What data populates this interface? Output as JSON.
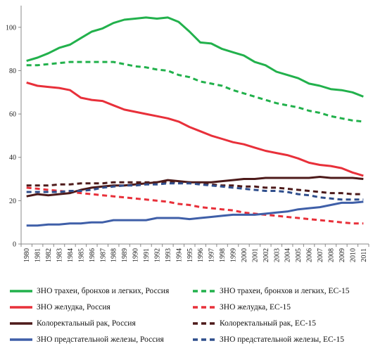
{
  "chart_data": {
    "type": "line",
    "x": [
      "1980",
      "1981",
      "1982",
      "1983",
      "1984",
      "1985",
      "1986",
      "1987",
      "1988",
      "1989",
      "1990",
      "1991",
      "1992",
      "1993",
      "1994",
      "1995",
      "1996",
      "1997",
      "1998",
      "1999",
      "2000",
      "2001",
      "2002",
      "2003",
      "2004",
      "2005",
      "2006",
      "2007",
      "2008",
      "2009",
      "2010",
      "2011"
    ],
    "ylim": [
      0,
      110
    ],
    "yticks": [
      "0",
      "20",
      "40",
      "60",
      "80",
      "100"
    ],
    "grid": false,
    "legend_position": "bottom",
    "series": [
      {
        "name": "ЗНО трахеи, бронхов и легких, Россия",
        "color": "#22b14c",
        "dash": "solid",
        "values": [
          84.5,
          86,
          88,
          90.5,
          92,
          95,
          98,
          99.5,
          102,
          103.5,
          104,
          104.5,
          104,
          104.5,
          102.5,
          98,
          93,
          92.5,
          90,
          88.5,
          87,
          84,
          82.5,
          79.5,
          78,
          76.5,
          74,
          73,
          71.5,
          71,
          70,
          68
        ]
      },
      {
        "name": "ЗНО трахеи, бронхов и легких, ЕС-15",
        "color": "#22b14c",
        "dash": "dashed",
        "values": [
          82.5,
          82.5,
          83,
          83.5,
          84,
          84,
          84,
          84,
          84,
          83,
          82,
          81.5,
          80.5,
          80,
          78,
          77,
          75,
          74,
          73,
          71,
          69.5,
          68,
          66.5,
          65,
          64,
          63,
          61.5,
          60.5,
          59,
          58,
          57,
          56.5
        ]
      },
      {
        "name": "ЗНО желудка, Россия",
        "color": "#e8303a",
        "dash": "solid",
        "values": [
          74.5,
          73,
          72.5,
          72,
          71,
          67.5,
          66.5,
          66,
          64,
          62,
          61,
          60,
          59,
          58,
          56.5,
          54,
          52,
          50,
          48.5,
          47,
          46,
          44.5,
          43,
          42,
          41,
          39.5,
          37.5,
          36.5,
          36,
          35,
          33,
          31.5
        ]
      },
      {
        "name": "ЗНО желудка, ЕС-15",
        "color": "#e8303a",
        "dash": "dashed",
        "values": [
          26,
          25.5,
          25,
          24.5,
          24,
          23.5,
          23,
          22.5,
          22,
          21.5,
          21,
          20.5,
          20,
          19.5,
          18.5,
          18,
          17,
          16.5,
          16,
          15.5,
          14.5,
          14,
          13.5,
          13,
          12.5,
          12,
          11.5,
          11,
          10.5,
          10,
          9.5,
          9.5
        ]
      },
      {
        "name": "Колоректальный рак, Россия",
        "color": "#4d1a1a",
        "dash": "solid",
        "values": [
          22,
          23,
          22.5,
          23,
          23.5,
          25,
          26,
          26.5,
          27,
          27,
          27.5,
          28,
          28.5,
          29.5,
          29,
          28.5,
          28.5,
          28.5,
          29,
          29.5,
          30,
          30,
          30.5,
          30.5,
          30.5,
          30.5,
          30.5,
          31,
          30.5,
          30.5,
          30.5,
          30
        ]
      },
      {
        "name": "Колоректальный рак, ЕС-15",
        "color": "#4d1a1a",
        "dash": "dashed",
        "values": [
          27,
          27,
          27,
          27.5,
          27.5,
          28,
          28,
          28,
          28.5,
          28.5,
          28.5,
          28.5,
          28.5,
          28.5,
          28.5,
          28.5,
          28,
          27.5,
          27,
          27,
          26.5,
          26.5,
          26,
          26,
          25.5,
          25,
          24.5,
          24,
          23.5,
          23.5,
          23,
          23
        ]
      },
      {
        "name": "ЗНО предстательной железы, Россия",
        "color": "#3f5fa8",
        "dash": "solid",
        "values": [
          8.5,
          8.5,
          9,
          9,
          9.5,
          9.5,
          10,
          10,
          11,
          11,
          11,
          11,
          12,
          12,
          12,
          11.5,
          12,
          12.5,
          13,
          13.5,
          13.5,
          13.5,
          14,
          14.5,
          15,
          16,
          16.5,
          17,
          18,
          19,
          19,
          19.5
        ]
      },
      {
        "name": "ЗНО предстательной железы, ЕС-15",
        "color": "#2f4e8c",
        "dash": "dashed",
        "values": [
          24,
          24,
          24,
          24,
          24.5,
          24.5,
          25,
          26,
          26.5,
          27,
          27,
          27.5,
          27.5,
          28,
          28,
          28,
          27.5,
          27,
          26.5,
          26,
          25.5,
          25,
          24.5,
          24.5,
          24,
          23,
          22.5,
          21.5,
          21,
          20.5,
          20.5,
          20.5
        ]
      }
    ]
  }
}
